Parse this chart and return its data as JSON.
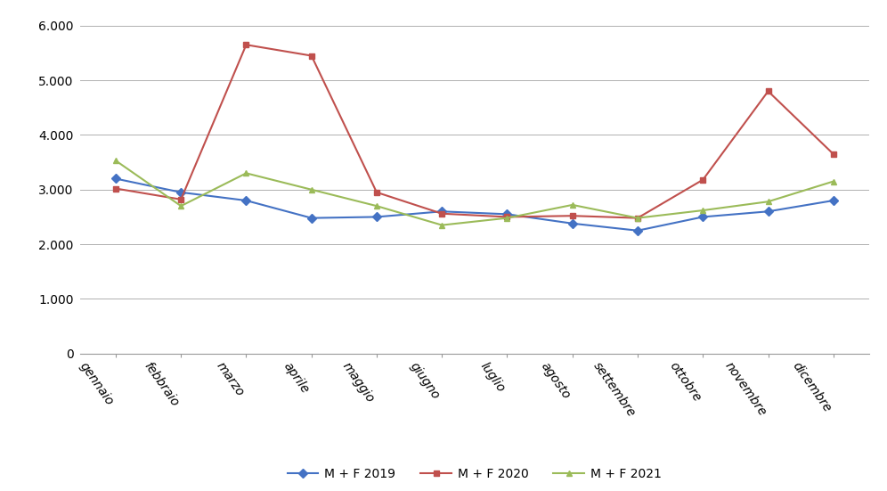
{
  "months": [
    "gennaio",
    "febbraio",
    "marzo",
    "aprile",
    "maggio",
    "giugno",
    "luglio",
    "agosto",
    "settembre",
    "ottobre",
    "novembre",
    "dicembre"
  ],
  "series": {
    "M + F 2019": [
      3200,
      2950,
      2800,
      2480,
      2500,
      2600,
      2550,
      2380,
      2250,
      2500,
      2600,
      2800
    ],
    "M + F 2020": [
      3020,
      2820,
      5650,
      5450,
      2950,
      2560,
      2500,
      2520,
      2480,
      3180,
      4800,
      3650
    ],
    "M + F 2021": [
      3530,
      2700,
      3300,
      3000,
      2700,
      2350,
      2480,
      2720,
      2480,
      2620,
      2780,
      3150
    ]
  },
  "colors": {
    "M + F 2019": "#4472C4",
    "M + F 2020": "#C0504D",
    "M + F 2021": "#9BBB59"
  },
  "markers": {
    "M + F 2019": "D",
    "M + F 2020": "s",
    "M + F 2021": "^"
  },
  "ylim": [
    0,
    6200
  ],
  "yticks": [
    0,
    1000,
    2000,
    3000,
    4000,
    5000,
    6000
  ],
  "ytick_labels": [
    "0",
    "1.000",
    "2.000",
    "3.000",
    "4.000",
    "5.000",
    "6.000"
  ],
  "background_color": "#ffffff",
  "grid_color": "#b0b0b0",
  "legend_labels": [
    "M + F 2019",
    "M + F 2020",
    "M + F 2021"
  ],
  "figsize": [
    9.96,
    5.51
  ],
  "dpi": 100,
  "xlabel_rotation": -55,
  "xlabel_ha": "right",
  "xlabel_fontsize": 10,
  "ylabel_fontsize": 10
}
